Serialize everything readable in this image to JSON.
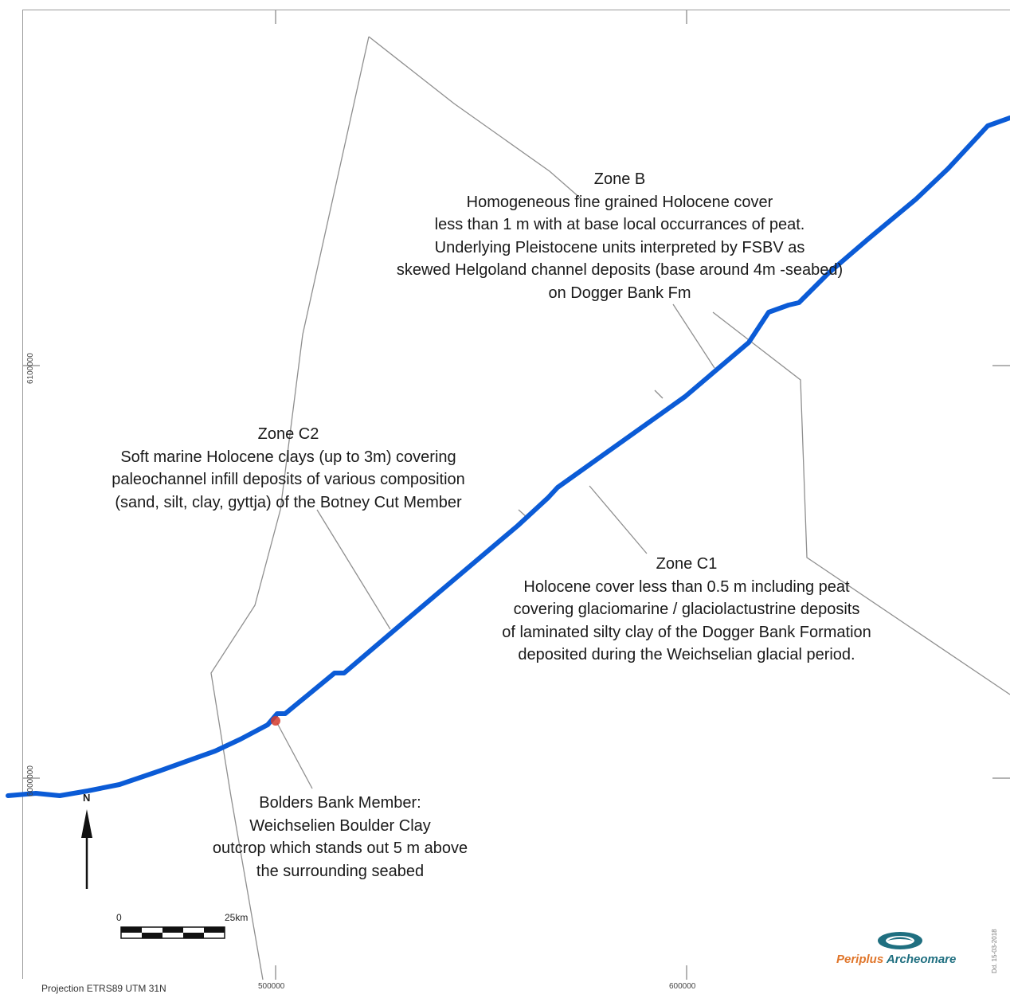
{
  "map": {
    "zones": [
      {
        "id": "zone-b",
        "title": "Zone B",
        "lines": [
          "Homogeneous fine grained Holocene cover",
          "less than 1 m with at base local occurrances of peat.",
          "Underlying Pleistocene units interpreted by FSBV as",
          "skewed Helgoland channel deposits (base around 4m -seabed)",
          "on Dogger Bank Fm"
        ]
      },
      {
        "id": "zone-c2",
        "title": "Zone C2",
        "lines": [
          "Soft marine Holocene clays (up to 3m) covering",
          "paleochannel infill deposits of various composition",
          "(sand, silt, clay, gyttja) of the Botney Cut Member"
        ]
      },
      {
        "id": "zone-c1",
        "title": "Zone C1",
        "lines": [
          "Holocene cover less than 0.5 m including peat",
          "covering glaciomarine / glaciolactustrine deposits",
          "of laminated silty clay of the Dogger Bank Formation",
          "deposited during the Weichselian glacial period."
        ]
      },
      {
        "id": "bolders-bank",
        "title": "Bolders Bank Member:",
        "lines": [
          "Weichselien Boulder Clay",
          "outcrop which stands out 5 m above",
          "the surrounding seabed"
        ]
      }
    ],
    "x_ticks": [
      "500000",
      "600000"
    ],
    "y_ticks": [
      "6100000",
      "6000000"
    ],
    "projection": "Projection ETRS89 UTM 31N",
    "north_label": "N",
    "scale_bar": {
      "start": "0",
      "end": "25km"
    },
    "logo": {
      "part1": "Periplus",
      "part2": "Archeomare"
    },
    "date_note": "Dd. 15-03-2018",
    "colors": {
      "route": "#0b5bd6",
      "zone_lines": "#8f8f8f",
      "marker": "#d33a2c",
      "frame": "#9a9a9a"
    }
  }
}
